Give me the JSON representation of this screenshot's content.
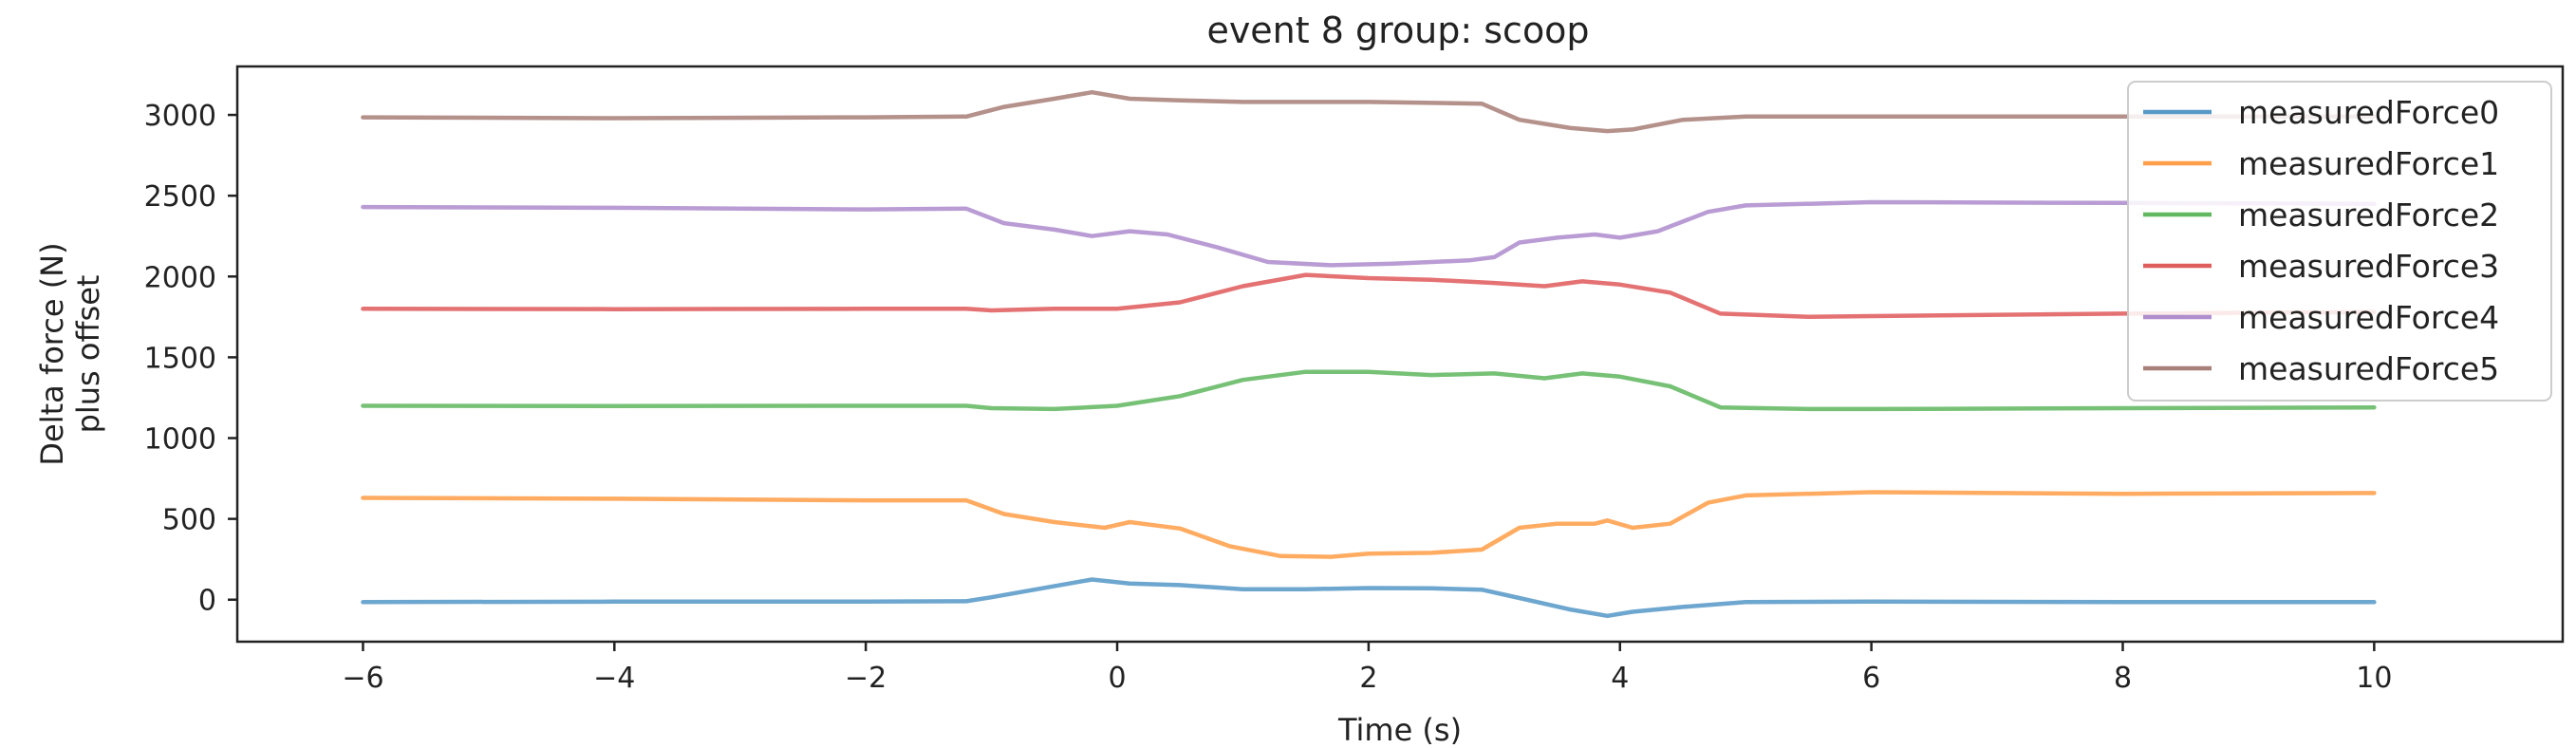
{
  "chart_data": {
    "type": "line",
    "title": "event 8 group: scoop",
    "xlabel": "Time (s)",
    "ylabel_lines": [
      "Delta force (N)",
      "plus offset"
    ],
    "xlim": [
      -7,
      11.5
    ],
    "ylim": [
      -260,
      3300
    ],
    "x_ticks": [
      -6,
      -4,
      -2,
      0,
      2,
      4,
      6,
      8,
      10
    ],
    "x_tick_labels": [
      "−6",
      "−4",
      "−2",
      "0",
      "2",
      "4",
      "6",
      "8",
      "10"
    ],
    "y_ticks": [
      0,
      500,
      1000,
      1500,
      2000,
      2500,
      3000
    ],
    "y_tick_labels": [
      "0",
      "500",
      "1000",
      "1500",
      "2000",
      "2500",
      "3000"
    ],
    "grid": false,
    "legend_position": "top-right",
    "series": [
      {
        "name": "measuredForce0",
        "color": "#1f77b4",
        "points": [
          [
            -6,
            -15
          ],
          [
            -4,
            -12
          ],
          [
            -2,
            -12
          ],
          [
            -1.2,
            -10
          ],
          [
            -1.0,
            15
          ],
          [
            -0.6,
            70
          ],
          [
            -0.2,
            125
          ],
          [
            0.1,
            100
          ],
          [
            0.5,
            90
          ],
          [
            1.0,
            65
          ],
          [
            1.5,
            65
          ],
          [
            2.0,
            72
          ],
          [
            2.5,
            70
          ],
          [
            2.9,
            62
          ],
          [
            3.2,
            10
          ],
          [
            3.6,
            -60
          ],
          [
            3.9,
            -100
          ],
          [
            4.1,
            -75
          ],
          [
            4.5,
            -45
          ],
          [
            5.0,
            -15
          ],
          [
            6.0,
            -12
          ],
          [
            8.0,
            -15
          ],
          [
            10,
            -15
          ]
        ]
      },
      {
        "name": "measuredForce1",
        "color": "#ff7f0e",
        "points": [
          [
            -6,
            630
          ],
          [
            -4,
            625
          ],
          [
            -2,
            615
          ],
          [
            -1.2,
            615
          ],
          [
            -0.9,
            530
          ],
          [
            -0.5,
            480
          ],
          [
            -0.1,
            445
          ],
          [
            0.1,
            480
          ],
          [
            0.5,
            440
          ],
          [
            0.9,
            330
          ],
          [
            1.3,
            270
          ],
          [
            1.7,
            265
          ],
          [
            2.0,
            285
          ],
          [
            2.5,
            290
          ],
          [
            2.9,
            310
          ],
          [
            3.2,
            445
          ],
          [
            3.5,
            470
          ],
          [
            3.8,
            470
          ],
          [
            3.9,
            490
          ],
          [
            4.1,
            445
          ],
          [
            4.4,
            470
          ],
          [
            4.7,
            600
          ],
          [
            5.0,
            645
          ],
          [
            6.0,
            665
          ],
          [
            8.0,
            655
          ],
          [
            10,
            660
          ]
        ]
      },
      {
        "name": "measuredForce2",
        "color": "#2ca02c",
        "points": [
          [
            -6,
            1200
          ],
          [
            -4,
            1198
          ],
          [
            -2,
            1200
          ],
          [
            -1.2,
            1200
          ],
          [
            -1.0,
            1185
          ],
          [
            -0.5,
            1180
          ],
          [
            0,
            1200
          ],
          [
            0.5,
            1260
          ],
          [
            1.0,
            1360
          ],
          [
            1.5,
            1410
          ],
          [
            2.0,
            1410
          ],
          [
            2.5,
            1390
          ],
          [
            3.0,
            1400
          ],
          [
            3.4,
            1370
          ],
          [
            3.7,
            1400
          ],
          [
            4.0,
            1380
          ],
          [
            4.4,
            1320
          ],
          [
            4.8,
            1190
          ],
          [
            5.5,
            1180
          ],
          [
            6.0,
            1180
          ],
          [
            8.0,
            1185
          ],
          [
            10,
            1190
          ]
        ]
      },
      {
        "name": "measuredForce3",
        "color": "#d62728",
        "points": [
          [
            -6,
            1800
          ],
          [
            -4,
            1798
          ],
          [
            -2,
            1800
          ],
          [
            -1.2,
            1800
          ],
          [
            -1.0,
            1790
          ],
          [
            -0.5,
            1800
          ],
          [
            0,
            1800
          ],
          [
            0.5,
            1840
          ],
          [
            1.0,
            1940
          ],
          [
            1.5,
            2010
          ],
          [
            2.0,
            1990
          ],
          [
            2.5,
            1980
          ],
          [
            3.0,
            1960
          ],
          [
            3.4,
            1940
          ],
          [
            3.7,
            1970
          ],
          [
            4.0,
            1950
          ],
          [
            4.4,
            1900
          ],
          [
            4.8,
            1770
          ],
          [
            5.5,
            1750
          ],
          [
            6.0,
            1755
          ],
          [
            8.0,
            1770
          ],
          [
            10,
            1780
          ]
        ]
      },
      {
        "name": "measuredForce4",
        "color": "#9467bd",
        "points": [
          [
            -6,
            2430
          ],
          [
            -4,
            2425
          ],
          [
            -2,
            2415
          ],
          [
            -1.2,
            2420
          ],
          [
            -0.9,
            2330
          ],
          [
            -0.5,
            2290
          ],
          [
            -0.2,
            2250
          ],
          [
            0.1,
            2280
          ],
          [
            0.4,
            2260
          ],
          [
            0.8,
            2180
          ],
          [
            1.2,
            2090
          ],
          [
            1.7,
            2070
          ],
          [
            2.2,
            2080
          ],
          [
            2.8,
            2100
          ],
          [
            3.0,
            2120
          ],
          [
            3.2,
            2210
          ],
          [
            3.5,
            2240
          ],
          [
            3.8,
            2260
          ],
          [
            4.0,
            2240
          ],
          [
            4.3,
            2280
          ],
          [
            4.7,
            2400
          ],
          [
            5.0,
            2440
          ],
          [
            6.0,
            2460
          ],
          [
            8.0,
            2455
          ],
          [
            10,
            2450
          ]
        ]
      },
      {
        "name": "measuredForce5",
        "color": "#8c564b",
        "points": [
          [
            -6,
            2985
          ],
          [
            -4,
            2980
          ],
          [
            -2,
            2985
          ],
          [
            -1.2,
            2990
          ],
          [
            -0.9,
            3050
          ],
          [
            -0.5,
            3100
          ],
          [
            -0.2,
            3140
          ],
          [
            0.1,
            3100
          ],
          [
            0.5,
            3090
          ],
          [
            1.0,
            3080
          ],
          [
            2.0,
            3080
          ],
          [
            2.9,
            3070
          ],
          [
            3.2,
            2970
          ],
          [
            3.6,
            2920
          ],
          [
            3.9,
            2900
          ],
          [
            4.1,
            2910
          ],
          [
            4.5,
            2970
          ],
          [
            5.0,
            2990
          ],
          [
            6.0,
            2990
          ],
          [
            8.0,
            2990
          ],
          [
            10,
            2990
          ]
        ]
      }
    ]
  }
}
